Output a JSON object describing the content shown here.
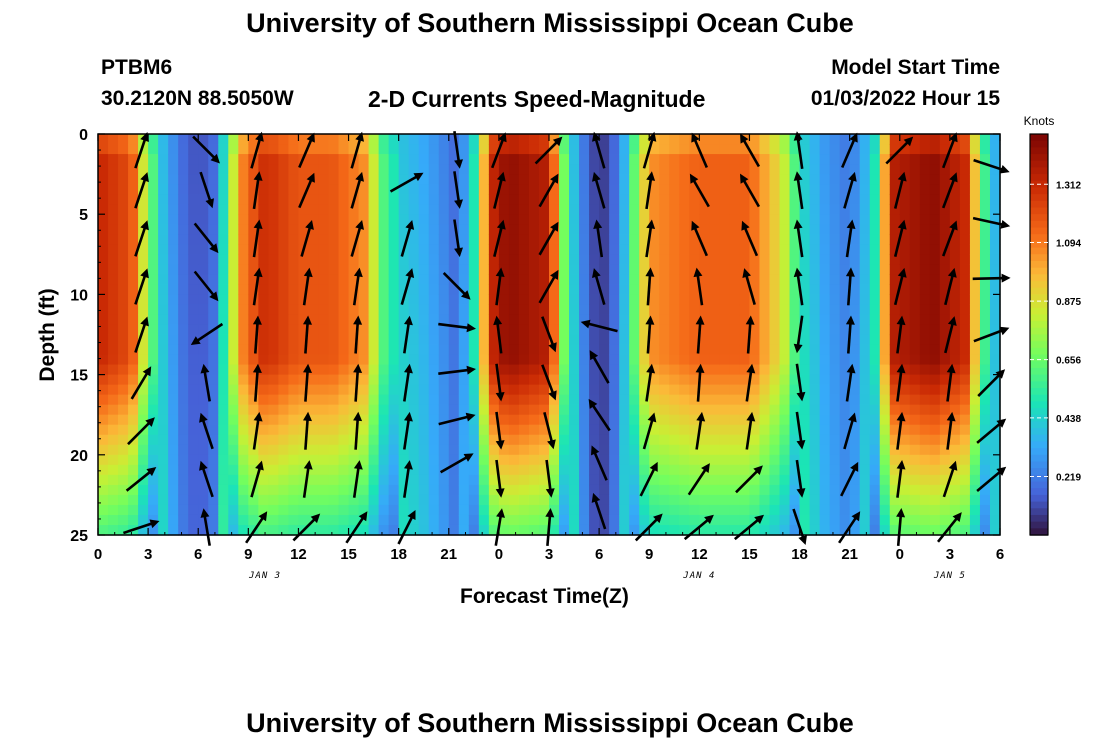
{
  "page": {
    "title": "University of Southern Mississippi Ocean Cube",
    "station": "PTBM6",
    "coords": "30.2120N  88.5050W",
    "subtitle": "2-D Currents Speed-Magnitude",
    "model_start_label": "Model Start Time",
    "model_start_value": "01/03/2022 Hour 15",
    "bottom_title": "University of Southern Mississippi Ocean Cube"
  },
  "chart_data": {
    "type": "heatmap",
    "title": "2-D Currents Speed-Magnitude",
    "xlabel": "Forecast Time(Z)",
    "ylabel": "Depth (ft)",
    "x_range_hours": [
      0,
      54
    ],
    "ylim": [
      0,
      25
    ],
    "y_inverted": true,
    "x_ticks": [
      "0",
      "3",
      "6",
      "9",
      "12",
      "15",
      "18",
      "21",
      "0",
      "3",
      "6",
      "9",
      "12",
      "15",
      "18",
      "21",
      "0",
      "3",
      "6"
    ],
    "y_ticks": [
      0,
      5,
      10,
      15,
      20,
      25
    ],
    "date_labels": [
      {
        "text": "JAN 3",
        "hour": 10
      },
      {
        "text": "JAN 4",
        "hour": 36
      },
      {
        "text": "JAN 5",
        "hour": 51
      }
    ],
    "colorbar": {
      "title": "Knots",
      "ticks": [
        0.219,
        0.438,
        0.656,
        0.875,
        1.094,
        1.312
      ],
      "range": [
        0,
        1.5
      ]
    },
    "speed_profile_knots": [
      {
        "t": 0,
        "s": 1.32
      },
      {
        "t": 2,
        "s": 1.2
      },
      {
        "t": 3,
        "s": 0.7
      },
      {
        "t": 4,
        "s": 0.38
      },
      {
        "t": 5,
        "s": 0.2
      },
      {
        "t": 6,
        "s": 0.12
      },
      {
        "t": 7,
        "s": 0.2
      },
      {
        "t": 7.6,
        "s": 0.55
      },
      {
        "t": 8.5,
        "s": 1.05
      },
      {
        "t": 10,
        "s": 1.3
      },
      {
        "t": 12,
        "s": 1.18
      },
      {
        "t": 14,
        "s": 1.18
      },
      {
        "t": 16,
        "s": 1.05
      },
      {
        "t": 17,
        "s": 0.62
      },
      {
        "t": 18,
        "s": 0.45
      },
      {
        "t": 19.5,
        "s": 0.36
      },
      {
        "t": 20.5,
        "s": 0.28
      },
      {
        "t": 21.5,
        "s": 0.18
      },
      {
        "t": 22.5,
        "s": 0.5
      },
      {
        "t": 23.5,
        "s": 1.3
      },
      {
        "t": 24.5,
        "s": 1.45
      },
      {
        "t": 27,
        "s": 1.35
      },
      {
        "t": 28,
        "s": 0.6
      },
      {
        "t": 29,
        "s": 0.25
      },
      {
        "t": 30,
        "s": 0.05
      },
      {
        "t": 31,
        "s": 0.2
      },
      {
        "t": 31.8,
        "s": 0.5
      },
      {
        "t": 33,
        "s": 1.05
      },
      {
        "t": 36,
        "s": 1.15
      },
      {
        "t": 39,
        "s": 1.15
      },
      {
        "t": 41,
        "s": 0.85
      },
      {
        "t": 42,
        "s": 0.5
      },
      {
        "t": 43.5,
        "s": 0.32
      },
      {
        "t": 45,
        "s": 0.22
      },
      {
        "t": 46.5,
        "s": 0.5
      },
      {
        "t": 47.5,
        "s": 1.35
      },
      {
        "t": 50,
        "s": 1.45
      },
      {
        "t": 52,
        "s": 1.3
      },
      {
        "t": 53,
        "s": 0.6
      },
      {
        "t": 54,
        "s": 0.3
      }
    ],
    "vectors": [
      {
        "t": 2.6,
        "d": 1,
        "u": 0.2,
        "v": 0.6
      },
      {
        "t": 2.6,
        "d": 3.5,
        "u": 0.2,
        "v": 0.6
      },
      {
        "t": 2.6,
        "d": 6.5,
        "u": 0.2,
        "v": 0.6
      },
      {
        "t": 2.6,
        "d": 9.5,
        "u": 0.2,
        "v": 0.6
      },
      {
        "t": 2.6,
        "d": 12.5,
        "u": 0.2,
        "v": 0.6
      },
      {
        "t": 2.6,
        "d": 15.5,
        "u": 0.3,
        "v": 0.5
      },
      {
        "t": 2.6,
        "d": 18.5,
        "u": 0.4,
        "v": 0.4
      },
      {
        "t": 2.6,
        "d": 21.5,
        "u": 0.5,
        "v": 0.4
      },
      {
        "t": 2.6,
        "d": 24.5,
        "u": 0.6,
        "v": 0.2
      },
      {
        "t": 6.5,
        "d": 1,
        "u": 0.6,
        "v": -0.6
      },
      {
        "t": 6.5,
        "d": 3.5,
        "u": 0.2,
        "v": -0.6
      },
      {
        "t": 6.5,
        "d": 6.5,
        "u": 0.4,
        "v": -0.5
      },
      {
        "t": 6.5,
        "d": 9.5,
        "u": 0.4,
        "v": -0.5
      },
      {
        "t": 6.5,
        "d": 12.5,
        "u": -0.6,
        "v": -0.4
      },
      {
        "t": 6.5,
        "d": 15.5,
        "u": -0.1,
        "v": 0.6
      },
      {
        "t": 6.5,
        "d": 18.5,
        "u": -0.2,
        "v": 0.6
      },
      {
        "t": 6.5,
        "d": 21.5,
        "u": -0.2,
        "v": 0.6
      },
      {
        "t": 6.5,
        "d": 24.5,
        "u": -0.1,
        "v": 0.6
      },
      {
        "t": 9.5,
        "d": 1,
        "u": 0.2,
        "v": 0.7
      },
      {
        "t": 9.5,
        "d": 3.5,
        "u": 0.1,
        "v": 0.7
      },
      {
        "t": 9.5,
        "d": 6.5,
        "u": 0.1,
        "v": 0.7
      },
      {
        "t": 9.5,
        "d": 9.5,
        "u": 0.1,
        "v": 0.7
      },
      {
        "t": 9.5,
        "d": 12.5,
        "u": 0.05,
        "v": 0.7
      },
      {
        "t": 9.5,
        "d": 15.5,
        "u": 0.05,
        "v": 0.7
      },
      {
        "t": 9.5,
        "d": 18.5,
        "u": 0.1,
        "v": 0.7
      },
      {
        "t": 9.5,
        "d": 21.5,
        "u": 0.2,
        "v": 0.7
      },
      {
        "t": 9.5,
        "d": 24.5,
        "u": 0.4,
        "v": 0.6
      },
      {
        "t": 12.5,
        "d": 1,
        "u": 0.3,
        "v": 0.7
      },
      {
        "t": 12.5,
        "d": 3.5,
        "u": 0.3,
        "v": 0.7
      },
      {
        "t": 12.5,
        "d": 6.5,
        "u": 0.2,
        "v": 0.7
      },
      {
        "t": 12.5,
        "d": 9.5,
        "u": 0.1,
        "v": 0.7
      },
      {
        "t": 12.5,
        "d": 12.5,
        "u": 0.05,
        "v": 0.7
      },
      {
        "t": 12.5,
        "d": 15.5,
        "u": 0.05,
        "v": 0.7
      },
      {
        "t": 12.5,
        "d": 18.5,
        "u": 0.05,
        "v": 0.7
      },
      {
        "t": 12.5,
        "d": 21.5,
        "u": 0.1,
        "v": 0.7
      },
      {
        "t": 12.5,
        "d": 24.5,
        "u": 0.5,
        "v": 0.5
      },
      {
        "t": 15.5,
        "d": 1,
        "u": 0.2,
        "v": 0.7
      },
      {
        "t": 15.5,
        "d": 3.5,
        "u": 0.2,
        "v": 0.7
      },
      {
        "t": 15.5,
        "d": 6.5,
        "u": 0.2,
        "v": 0.7
      },
      {
        "t": 15.5,
        "d": 9.5,
        "u": 0.1,
        "v": 0.7
      },
      {
        "t": 15.5,
        "d": 12.5,
        "u": 0.05,
        "v": 0.7
      },
      {
        "t": 15.5,
        "d": 15.5,
        "u": 0.05,
        "v": 0.7
      },
      {
        "t": 15.5,
        "d": 18.5,
        "u": 0.05,
        "v": 0.7
      },
      {
        "t": 15.5,
        "d": 21.5,
        "u": 0.1,
        "v": 0.7
      },
      {
        "t": 15.5,
        "d": 24.5,
        "u": 0.4,
        "v": 0.6
      },
      {
        "t": 18.5,
        "d": 3,
        "u": 0.7,
        "v": 0.4
      },
      {
        "t": 18.5,
        "d": 6.5,
        "u": 0.2,
        "v": 0.7
      },
      {
        "t": 18.5,
        "d": 9.5,
        "u": 0.2,
        "v": 0.7
      },
      {
        "t": 18.5,
        "d": 12.5,
        "u": 0.1,
        "v": 0.7
      },
      {
        "t": 18.5,
        "d": 15.5,
        "u": 0.1,
        "v": 0.7
      },
      {
        "t": 18.5,
        "d": 18.5,
        "u": 0.1,
        "v": 0.7
      },
      {
        "t": 18.5,
        "d": 21.5,
        "u": 0.1,
        "v": 0.7
      },
      {
        "t": 18.5,
        "d": 24.5,
        "u": 0.3,
        "v": 0.6
      },
      {
        "t": 21.5,
        "d": 1,
        "u": 0.1,
        "v": -0.7
      },
      {
        "t": 21.5,
        "d": 3.5,
        "u": 0.1,
        "v": -0.7
      },
      {
        "t": 21.5,
        "d": 6.5,
        "u": 0.1,
        "v": -0.7
      },
      {
        "t": 21.5,
        "d": 9.5,
        "u": 0.5,
        "v": -0.5
      },
      {
        "t": 21.5,
        "d": 12,
        "u": 0.8,
        "v": -0.1
      },
      {
        "t": 21.5,
        "d": 14.8,
        "u": 0.8,
        "v": 0.1
      },
      {
        "t": 21.5,
        "d": 17.8,
        "u": 0.8,
        "v": 0.2
      },
      {
        "t": 21.5,
        "d": 20.5,
        "u": 0.7,
        "v": 0.4
      },
      {
        "t": 24,
        "d": 1,
        "u": 0.3,
        "v": 0.8
      },
      {
        "t": 24,
        "d": 3.5,
        "u": 0.2,
        "v": 0.8
      },
      {
        "t": 24,
        "d": 6.5,
        "u": 0.2,
        "v": 0.8
      },
      {
        "t": 24,
        "d": 9.5,
        "u": 0.1,
        "v": 0.8
      },
      {
        "t": 24,
        "d": 12.5,
        "u": -0.1,
        "v": 0.8
      },
      {
        "t": 24,
        "d": 15.5,
        "u": 0.1,
        "v": -0.8
      },
      {
        "t": 24,
        "d": 18.5,
        "u": 0.1,
        "v": -0.8
      },
      {
        "t": 24,
        "d": 21.5,
        "u": 0.1,
        "v": -0.8
      },
      {
        "t": 24,
        "d": 24.5,
        "u": 0.1,
        "v": 0.6
      },
      {
        "t": 27,
        "d": 1,
        "u": 0.6,
        "v": 0.6
      },
      {
        "t": 27,
        "d": 3.5,
        "u": 0.4,
        "v": 0.7
      },
      {
        "t": 27,
        "d": 6.5,
        "u": 0.4,
        "v": 0.7
      },
      {
        "t": 27,
        "d": 9.5,
        "u": 0.4,
        "v": 0.7
      },
      {
        "t": 27,
        "d": 12.5,
        "u": 0.3,
        "v": -0.8
      },
      {
        "t": 27,
        "d": 15.5,
        "u": 0.3,
        "v": -0.8
      },
      {
        "t": 27,
        "d": 18.5,
        "u": 0.2,
        "v": -0.8
      },
      {
        "t": 27,
        "d": 21.5,
        "u": 0.1,
        "v": -0.8
      },
      {
        "t": 27,
        "d": 24.5,
        "u": 0.05,
        "v": 0.6
      },
      {
        "t": 30,
        "d": 1,
        "u": -0.2,
        "v": 0.7
      },
      {
        "t": 30,
        "d": 3.5,
        "u": -0.2,
        "v": 0.7
      },
      {
        "t": 30,
        "d": 6.5,
        "u": -0.1,
        "v": 0.7
      },
      {
        "t": 30,
        "d": 9.5,
        "u": -0.2,
        "v": 0.7
      },
      {
        "t": 30,
        "d": 12,
        "u": -0.8,
        "v": 0.2
      },
      {
        "t": 30,
        "d": 14.5,
        "u": -0.4,
        "v": 0.7
      },
      {
        "t": 30,
        "d": 17.5,
        "u": -0.4,
        "v": 0.6
      },
      {
        "t": 30,
        "d": 20.5,
        "u": -0.3,
        "v": 0.7
      },
      {
        "t": 30,
        "d": 23.5,
        "u": -0.2,
        "v": 0.6
      },
      {
        "t": 33,
        "d": 1,
        "u": 0.2,
        "v": 0.7
      },
      {
        "t": 33,
        "d": 3.5,
        "u": 0.1,
        "v": 0.7
      },
      {
        "t": 33,
        "d": 6.5,
        "u": 0.1,
        "v": 0.7
      },
      {
        "t": 33,
        "d": 9.5,
        "u": 0.05,
        "v": 0.7
      },
      {
        "t": 33,
        "d": 12.5,
        "u": 0.05,
        "v": 0.7
      },
      {
        "t": 33,
        "d": 15.5,
        "u": 0.1,
        "v": 0.7
      },
      {
        "t": 33,
        "d": 18.5,
        "u": 0.2,
        "v": 0.7
      },
      {
        "t": 33,
        "d": 21.5,
        "u": 0.3,
        "v": 0.6
      },
      {
        "t": 33,
        "d": 24.5,
        "u": 0.5,
        "v": 0.5
      },
      {
        "t": 36,
        "d": 1,
        "u": -0.3,
        "v": 0.7
      },
      {
        "t": 36,
        "d": 3.5,
        "u": -0.4,
        "v": 0.7
      },
      {
        "t": 36,
        "d": 6.5,
        "u": -0.3,
        "v": 0.7
      },
      {
        "t": 36,
        "d": 9.5,
        "u": -0.1,
        "v": 0.7
      },
      {
        "t": 36,
        "d": 12.5,
        "u": 0.05,
        "v": 0.7
      },
      {
        "t": 36,
        "d": 15.5,
        "u": 0.05,
        "v": 0.7
      },
      {
        "t": 36,
        "d": 18.5,
        "u": 0.1,
        "v": 0.7
      },
      {
        "t": 36,
        "d": 21.5,
        "u": 0.4,
        "v": 0.6
      },
      {
        "t": 36,
        "d": 24.5,
        "u": 0.6,
        "v": 0.5
      },
      {
        "t": 39,
        "d": 1,
        "u": -0.4,
        "v": 0.7
      },
      {
        "t": 39,
        "d": 3.5,
        "u": -0.4,
        "v": 0.7
      },
      {
        "t": 39,
        "d": 6.5,
        "u": -0.3,
        "v": 0.7
      },
      {
        "t": 39,
        "d": 9.5,
        "u": -0.2,
        "v": 0.7
      },
      {
        "t": 39,
        "d": 12.5,
        "u": 0.05,
        "v": 0.7
      },
      {
        "t": 39,
        "d": 15.5,
        "u": 0.1,
        "v": 0.7
      },
      {
        "t": 39,
        "d": 18.5,
        "u": 0.1,
        "v": 0.7
      },
      {
        "t": 39,
        "d": 21.5,
        "u": 0.5,
        "v": 0.5
      },
      {
        "t": 39,
        "d": 24.5,
        "u": 0.6,
        "v": 0.5
      },
      {
        "t": 42,
        "d": 1,
        "u": -0.1,
        "v": 0.7
      },
      {
        "t": 42,
        "d": 3.5,
        "u": -0.1,
        "v": 0.7
      },
      {
        "t": 42,
        "d": 6.5,
        "u": -0.1,
        "v": 0.7
      },
      {
        "t": 42,
        "d": 9.5,
        "u": -0.1,
        "v": 0.7
      },
      {
        "t": 42,
        "d": 12.5,
        "u": -0.1,
        "v": -0.7
      },
      {
        "t": 42,
        "d": 15.5,
        "u": 0.1,
        "v": -0.7
      },
      {
        "t": 42,
        "d": 18.5,
        "u": 0.1,
        "v": -0.7
      },
      {
        "t": 42,
        "d": 21.5,
        "u": 0.1,
        "v": -0.7
      },
      {
        "t": 42,
        "d": 24.5,
        "u": 0.2,
        "v": -0.6
      },
      {
        "t": 45,
        "d": 1,
        "u": 0.3,
        "v": 0.7
      },
      {
        "t": 45,
        "d": 3.5,
        "u": 0.2,
        "v": 0.7
      },
      {
        "t": 45,
        "d": 6.5,
        "u": 0.1,
        "v": 0.7
      },
      {
        "t": 45,
        "d": 9.5,
        "u": 0.05,
        "v": 0.7
      },
      {
        "t": 45,
        "d": 12.5,
        "u": 0.05,
        "v": 0.7
      },
      {
        "t": 45,
        "d": 15.5,
        "u": 0.1,
        "v": 0.7
      },
      {
        "t": 45,
        "d": 18.5,
        "u": 0.2,
        "v": 0.7
      },
      {
        "t": 45,
        "d": 21.5,
        "u": 0.3,
        "v": 0.6
      },
      {
        "t": 45,
        "d": 24.5,
        "u": 0.4,
        "v": 0.6
      },
      {
        "t": 48,
        "d": 1,
        "u": 0.6,
        "v": 0.6
      },
      {
        "t": 48,
        "d": 3.5,
        "u": 0.2,
        "v": 0.8
      },
      {
        "t": 48,
        "d": 6.5,
        "u": 0.2,
        "v": 0.8
      },
      {
        "t": 48,
        "d": 9.5,
        "u": 0.2,
        "v": 0.8
      },
      {
        "t": 48,
        "d": 12.5,
        "u": 0.1,
        "v": 0.8
      },
      {
        "t": 48,
        "d": 15.5,
        "u": 0.1,
        "v": 0.8
      },
      {
        "t": 48,
        "d": 18.5,
        "u": 0.1,
        "v": 0.8
      },
      {
        "t": 48,
        "d": 21.5,
        "u": 0.1,
        "v": 0.8
      },
      {
        "t": 48,
        "d": 24.5,
        "u": 0.05,
        "v": 0.6
      },
      {
        "t": 51,
        "d": 1,
        "u": 0.3,
        "v": 0.8
      },
      {
        "t": 51,
        "d": 3.5,
        "u": 0.3,
        "v": 0.8
      },
      {
        "t": 51,
        "d": 6.5,
        "u": 0.3,
        "v": 0.8
      },
      {
        "t": 51,
        "d": 9.5,
        "u": 0.2,
        "v": 0.8
      },
      {
        "t": 51,
        "d": 12.5,
        "u": 0.2,
        "v": 0.8
      },
      {
        "t": 51,
        "d": 15.5,
        "u": 0.1,
        "v": 0.8
      },
      {
        "t": 51,
        "d": 18.5,
        "u": 0.1,
        "v": 0.8
      },
      {
        "t": 51,
        "d": 21.5,
        "u": 0.2,
        "v": 0.6
      },
      {
        "t": 51,
        "d": 24.5,
        "u": 0.4,
        "v": 0.5
      },
      {
        "t": 53.5,
        "d": 2,
        "u": 0.9,
        "v": -0.3
      },
      {
        "t": 53.5,
        "d": 5.5,
        "u": 0.9,
        "v": -0.2
      },
      {
        "t": 53.5,
        "d": 9,
        "u": 0.9,
        "v": 0.02
      },
      {
        "t": 53.5,
        "d": 12.5,
        "u": 0.8,
        "v": 0.3
      },
      {
        "t": 53.5,
        "d": 15.5,
        "u": 0.6,
        "v": 0.6
      },
      {
        "t": 53.5,
        "d": 18.5,
        "u": 0.6,
        "v": 0.5
      },
      {
        "t": 53.5,
        "d": 21.5,
        "u": 0.6,
        "v": 0.5
      }
    ]
  }
}
